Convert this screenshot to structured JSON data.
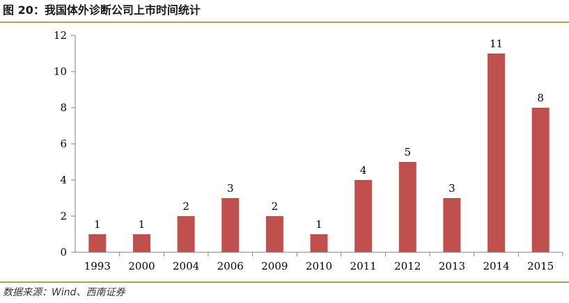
{
  "header": {
    "title": "图 20：我国体外诊断公司上市时间统计"
  },
  "footer": {
    "source": "数据来源：Wind、西南证券"
  },
  "colors": {
    "bar": "#c0504d",
    "rule": "#b89a5a",
    "axis": "#7f7f7f"
  },
  "chart_data": {
    "type": "bar",
    "categories": [
      "1993",
      "2000",
      "2004",
      "2006",
      "2009",
      "2010",
      "2011",
      "2012",
      "2013",
      "2014",
      "2015"
    ],
    "values": [
      1,
      1,
      2,
      3,
      2,
      1,
      4,
      5,
      3,
      11,
      8
    ],
    "data_labels": [
      "1",
      "1",
      "2",
      "3",
      "2",
      "1",
      "4",
      "5",
      "3",
      "11",
      "8"
    ],
    "yticks": [
      "0",
      "2",
      "4",
      "6",
      "8",
      "10",
      "12"
    ],
    "ylim": [
      0,
      12
    ],
    "grid": false,
    "legend": "none"
  }
}
